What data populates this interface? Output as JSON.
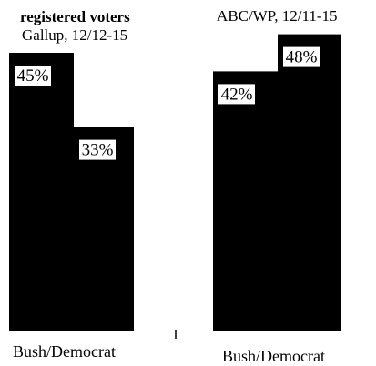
{
  "chart_data": [
    {
      "type": "bar",
      "title": "registered voters",
      "subtitle": "Gallup, 12/12-15",
      "categories": [
        "Bush/Democrat"
      ],
      "series": [
        {
          "values": [
            45
          ]
        },
        {
          "values": [
            33
          ]
        }
      ],
      "value_labels": [
        "45%",
        "33%"
      ],
      "ylim": [
        0,
        52
      ],
      "colors": {
        "bar": "#000000",
        "label_box": "#ffffff"
      }
    },
    {
      "type": "bar",
      "title": "ABC/WP, 12/11-15",
      "categories": [
        "Bush/Democrat"
      ],
      "series": [
        {
          "values": [
            42
          ]
        },
        {
          "values": [
            48
          ]
        }
      ],
      "value_labels": [
        "42%",
        "48%"
      ],
      "ylim": [
        0,
        52
      ],
      "colors": {
        "bar": "#000000",
        "label_box": "#ffffff"
      }
    }
  ]
}
